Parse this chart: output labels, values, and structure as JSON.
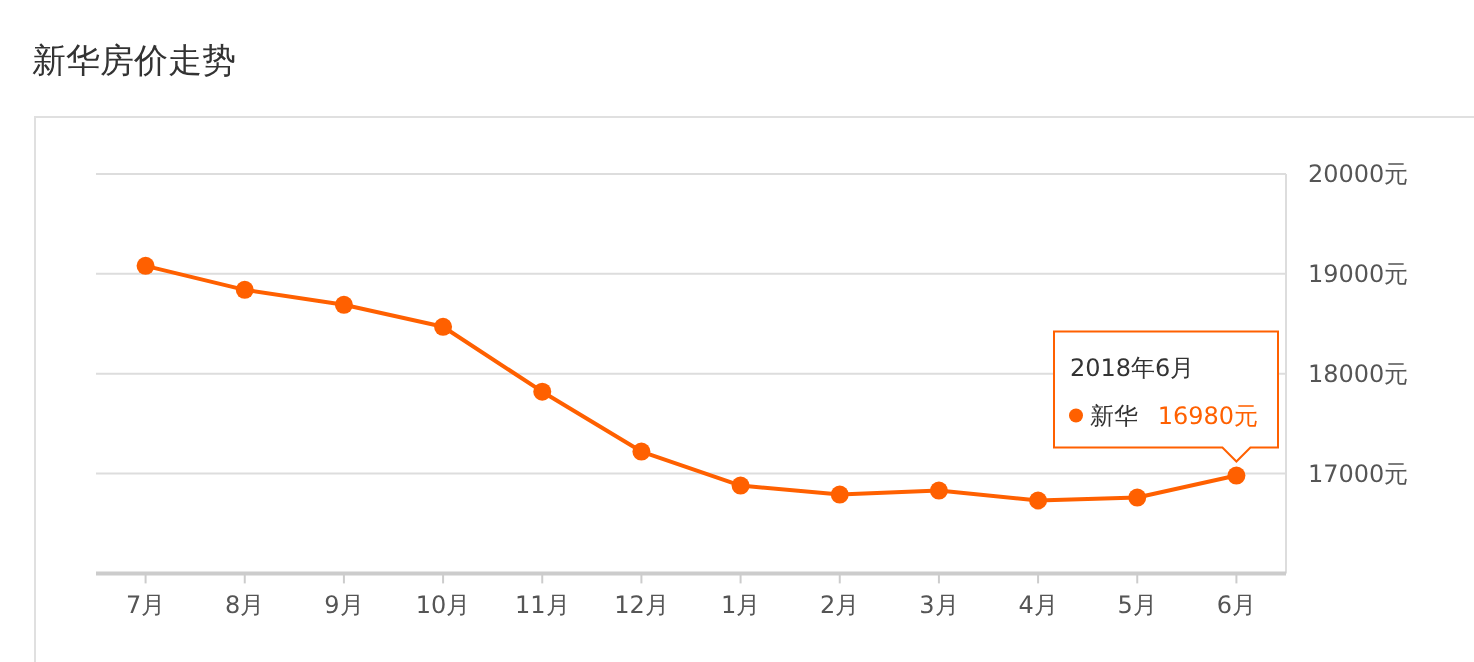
{
  "chart_data": {
    "type": "line",
    "title": "新华房价走势",
    "categories": [
      "7月",
      "8月",
      "9月",
      "10月",
      "11月",
      "12月",
      "1月",
      "2月",
      "3月",
      "4月",
      "5月",
      "6月"
    ],
    "series": [
      {
        "name": "新华",
        "color": "#ff6000",
        "values": [
          19080,
          18840,
          18690,
          18470,
          17820,
          17220,
          16880,
          16790,
          16830,
          16730,
          16760,
          16980
        ],
        "value_labels": [
          null,
          null,
          null,
          null,
          null,
          null,
          null,
          null,
          null,
          null,
          null,
          "16980元"
        ]
      }
    ],
    "ylim": [
      16000,
      20000
    ],
    "yticks": [
      {
        "value": 17000,
        "label": "17000元"
      },
      {
        "value": 18000,
        "label": "18000元"
      },
      {
        "value": 19000,
        "label": "19000元"
      },
      {
        "value": 20000,
        "label": "20000元"
      }
    ],
    "grid": "y",
    "marker": "circle",
    "line_style": "solid",
    "annotations": [
      "2018年6月"
    ]
  }
}
